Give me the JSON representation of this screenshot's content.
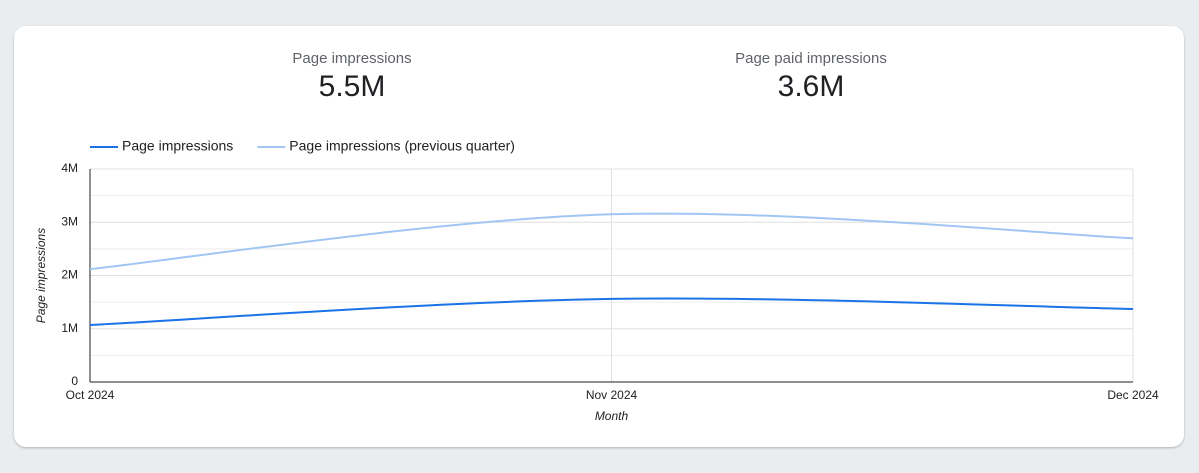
{
  "kpis": [
    {
      "label": "Page impressions",
      "value": "5.5M"
    },
    {
      "label": "Page paid impressions",
      "value": "3.6M"
    }
  ],
  "chart_data": {
    "type": "line",
    "categories": [
      "Oct 2024",
      "Nov 2024",
      "Dec 2024"
    ],
    "series": [
      {
        "name": "Page impressions",
        "color": "#1a73e8",
        "values": [
          1070000,
          1560000,
          1370000
        ]
      },
      {
        "name": "Page impressions (previous quarter)",
        "color": "#a1c6f4",
        "values": [
          2120000,
          3150000,
          2700000
        ]
      }
    ],
    "ylim": [
      0,
      4000000
    ],
    "yticks": [
      0,
      {
        "value": 1000000,
        "label": "1M"
      },
      {
        "value": 2000000,
        "label": "2M"
      },
      {
        "value": 3000000,
        "label": "3M"
      },
      {
        "value": 4000000,
        "label": "4M"
      }
    ],
    "x_label": "Month",
    "y_label": "Page impressions",
    "grid": true,
    "legend": "top-left"
  }
}
